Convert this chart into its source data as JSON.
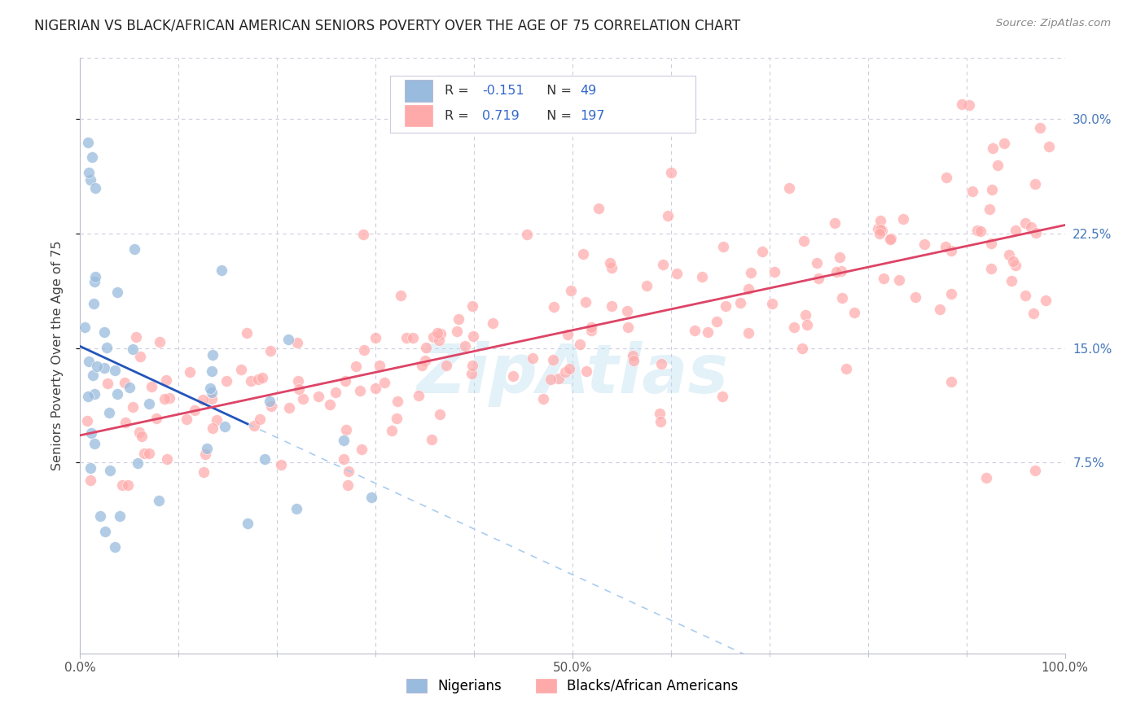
{
  "title": "NIGERIAN VS BLACK/AFRICAN AMERICAN SENIORS POVERTY OVER THE AGE OF 75 CORRELATION CHART",
  "source": "Source: ZipAtlas.com",
  "ylabel": "Seniors Poverty Over the Age of 75",
  "nigerian_R": -0.151,
  "nigerian_N": 49,
  "black_R": 0.719,
  "black_N": 197,
  "nigerian_color": "#99BBDD",
  "black_color": "#FFAAAA",
  "nigerian_line_color": "#2255BB",
  "black_line_color": "#DD4466",
  "dashed_color": "#AACCEE",
  "watermark": "ZipAtlas",
  "watermark_color": "#BBDDEE",
  "bg_color": "#FFFFFF",
  "grid_color": "#CCCCDD",
  "title_color": "#222222",
  "R_color": "#3366CC",
  "N_color": "#FF8800",
  "legend_box_color": "#EEEEFF",
  "legend_edge_color": "#CCCCDD",
  "right_axis_color": "#4477BB",
  "xlim": [
    0.0,
    1.0
  ],
  "ylim": [
    -0.05,
    0.34
  ],
  "yticks": [
    0.075,
    0.15,
    0.225,
    0.3
  ],
  "ytick_labels": [
    "7.5%",
    "15.0%",
    "22.5%",
    "30.0%"
  ],
  "xtick_pos": [
    0.0,
    0.5,
    1.0
  ],
  "xtick_labels": [
    "0.0%",
    "50.0%",
    "100.0%"
  ],
  "legend_nigerian_label": "Nigerians",
  "legend_black_label": "Blacks/African Americans",
  "nig_R_text": "-0.151",
  "nig_N_text": "49",
  "blk_R_text": "0.719",
  "blk_N_text": "197"
}
